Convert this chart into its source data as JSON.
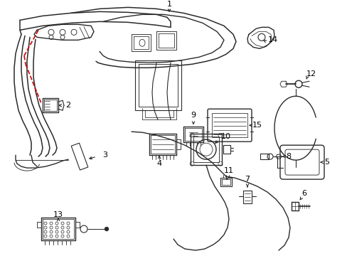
{
  "bg_color": "#ffffff",
  "lc": "#2a2a2a",
  "rc": "#cc0000",
  "figsize": [
    4.89,
    3.6
  ],
  "dpi": 100,
  "lw": 0.8
}
